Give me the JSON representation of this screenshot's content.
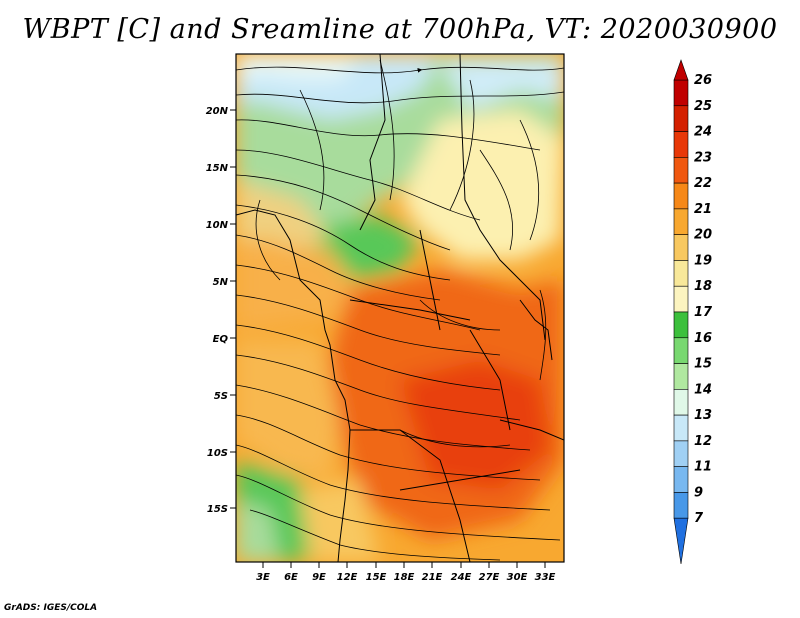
{
  "title": "WBPT [C] and Sreamline at 700hPa, VT: 2020030900",
  "footer": "GrADS: IGES/COLA",
  "map": {
    "lat_labels": [
      "20N",
      "15N",
      "10N",
      "5N",
      "EQ",
      "5S",
      "10S",
      "15S"
    ],
    "lon_labels": [
      "3E",
      "6E",
      "9E",
      "12E",
      "15E",
      "18E",
      "21E",
      "24E",
      "27E",
      "30E",
      "33E"
    ]
  },
  "colorbar": {
    "labels": [
      "26",
      "25",
      "24",
      "23",
      "22",
      "21",
      "20",
      "19",
      "18",
      "17",
      "16",
      "15",
      "14",
      "13",
      "12",
      "11",
      "9",
      "7"
    ],
    "colors": [
      "#c00000",
      "#d42000",
      "#e83808",
      "#f05810",
      "#f68818",
      "#f8a830",
      "#f8c860",
      "#f8e89a",
      "#fcf4c0",
      "#3cc03c",
      "#78d870",
      "#b0e8a0",
      "#e0f8e8",
      "#c8e8f8",
      "#a0d0f4",
      "#78b8f0",
      "#4898e8",
      "#2070e0"
    ]
  }
}
